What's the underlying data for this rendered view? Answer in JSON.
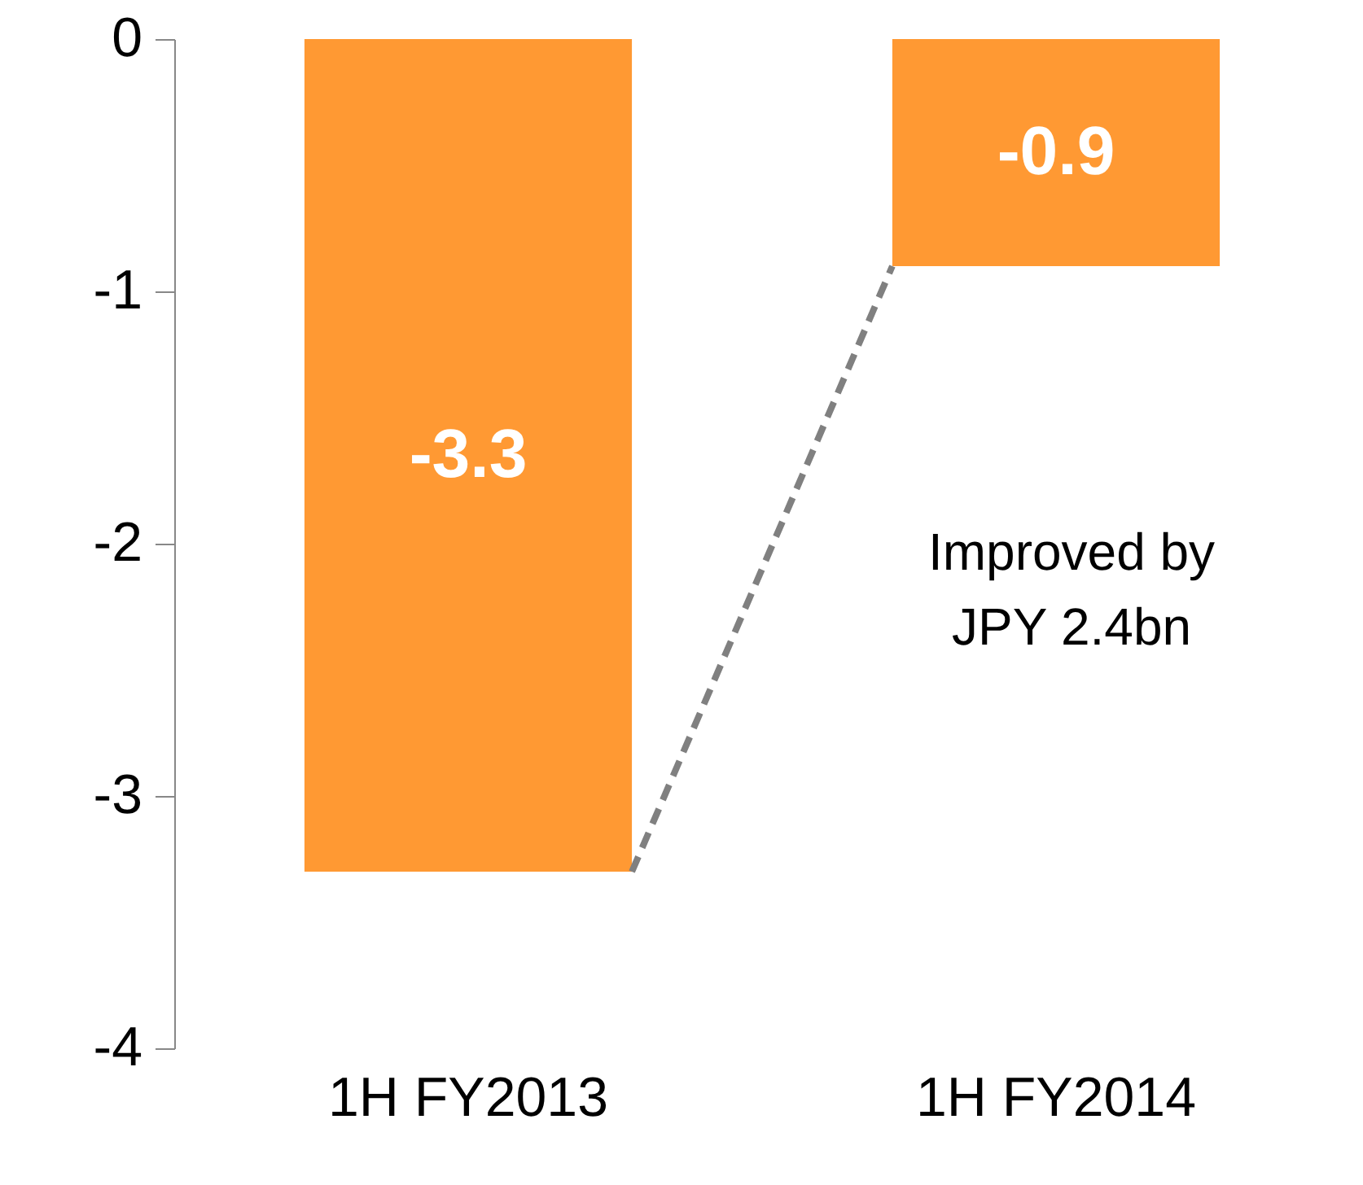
{
  "chart_data": {
    "type": "bar",
    "categories": [
      "1H FY2013",
      "1H FY2014"
    ],
    "values": [
      -3.3,
      -0.9
    ],
    "color": "#ff9933",
    "ylim": [
      -4,
      0
    ],
    "yticks": [
      -4,
      -3,
      -2,
      -1,
      0
    ],
    "data_labels": true,
    "grid": false,
    "annotations": [
      "Improved by\nJPY 2.4bn"
    ]
  }
}
